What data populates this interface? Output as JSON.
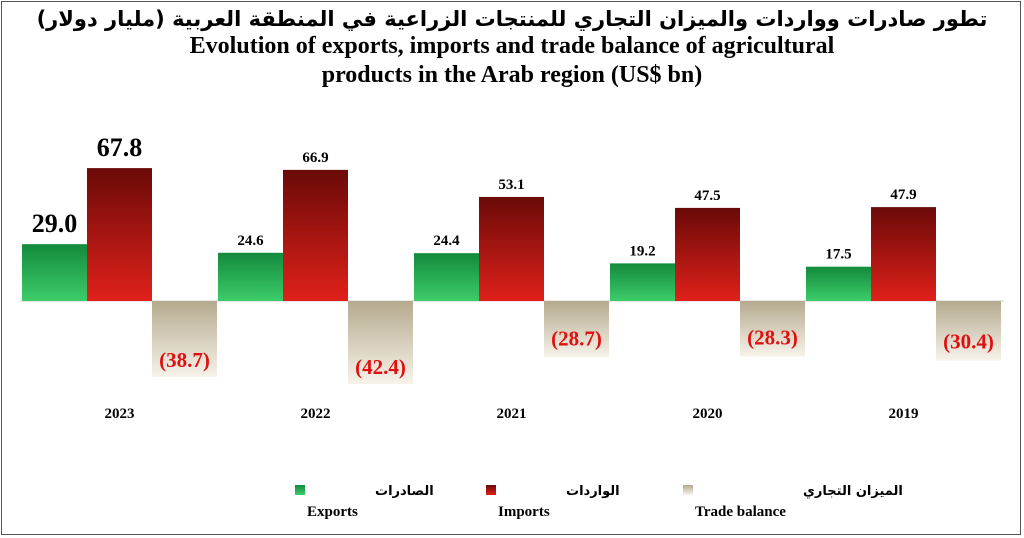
{
  "title_ar": "تطور صادرات وواردات والميزان التجاري للمنتجات الزراعية في المنطقة العربية (مليار دولار)",
  "title_en_line1": "Evolution of exports, imports and trade balance of agricultural",
  "title_en_line2": "products in the Arab region (US$ bn)",
  "chart_data": {
    "type": "bar",
    "title": "Evolution of exports, imports and trade balance of agricultural products in the Arab region (US$ bn)",
    "categories": [
      "2023",
      "2022",
      "2021",
      "2020",
      "2019"
    ],
    "series": [
      {
        "name": "Exports",
        "name_ar": "الصادرات",
        "values": [
          29.0,
          24.6,
          24.4,
          19.2,
          17.5
        ],
        "labels": [
          "29.0",
          "24.6",
          "24.4",
          "19.2",
          "17.5"
        ],
        "color": "#1f9a4a"
      },
      {
        "name": "Imports",
        "name_ar": "الواردات",
        "values": [
          67.8,
          66.9,
          53.1,
          47.5,
          47.9
        ],
        "labels": [
          "67.8",
          "66.9",
          "53.1",
          "47.5",
          "47.9"
        ],
        "color": "#b3120f"
      },
      {
        "name": "Trade balance",
        "name_ar": "الميزان التجاري",
        "values": [
          -38.7,
          -42.4,
          -28.7,
          -28.3,
          -30.4
        ],
        "labels": [
          "(38.7)",
          "(42.4)",
          "(28.7)",
          "(28.3)",
          "(30.4)"
        ],
        "color": "#c9bfa4"
      }
    ],
    "ylim": [
      -50,
      70
    ],
    "grid": false,
    "legend": "bottom",
    "colors": {
      "negative_label": "#e01010",
      "label": "#000000"
    }
  }
}
